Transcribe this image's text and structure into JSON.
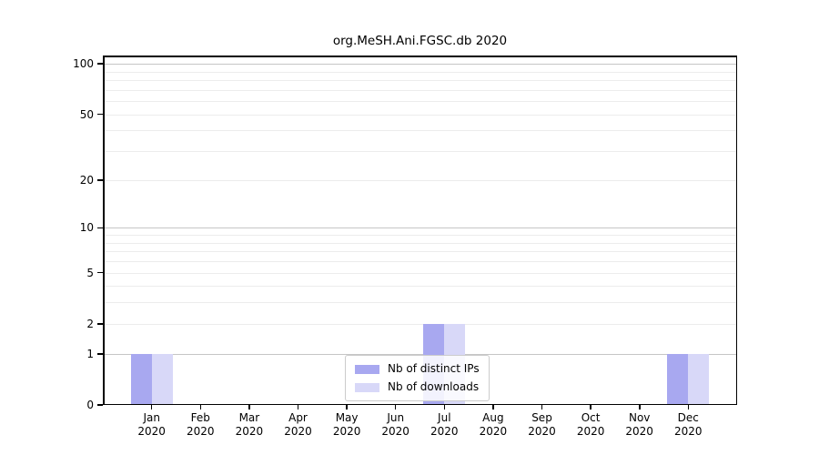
{
  "figure_title": "org.MeSH.Ani.FGSC.db 2020",
  "chart_data": {
    "type": "bar",
    "title": "org.MeSH.Ani.FGSC.db 2020",
    "categories": [
      "Jan 2020",
      "Feb 2020",
      "Mar 2020",
      "Apr 2020",
      "May 2020",
      "Jun 2020",
      "Jul 2020",
      "Aug 2020",
      "Sep 2020",
      "Oct 2020",
      "Nov 2020",
      "Dec 2020"
    ],
    "months": [
      "Jan",
      "Feb",
      "Mar",
      "Apr",
      "May",
      "Jun",
      "Jul",
      "Aug",
      "Sep",
      "Oct",
      "Nov",
      "Dec"
    ],
    "year": "2020",
    "series": [
      {
        "name": "Nb of distinct IPs",
        "color": "#a8a8f0",
        "values": [
          1,
          0,
          0,
          0,
          0,
          0,
          2,
          0,
          0,
          0,
          0,
          1
        ]
      },
      {
        "name": "Nb of downloads",
        "color": "#d8d8f8",
        "values": [
          1,
          0,
          0,
          0,
          0,
          0,
          2,
          0,
          0,
          0,
          0,
          1
        ]
      }
    ],
    "xlabel": "",
    "ylabel": "",
    "y_axis": {
      "scale": "log10(1+x)",
      "ticks": [
        0,
        1,
        2,
        5,
        10,
        20,
        50,
        100
      ],
      "major_gridlines": [
        1,
        10,
        100
      ],
      "minor_gridlines": [
        2,
        3,
        4,
        5,
        6,
        7,
        8,
        9,
        20,
        30,
        40,
        50,
        60,
        70,
        80,
        90
      ],
      "range": [
        0,
        112
      ]
    },
    "grid": true,
    "legend": {
      "position": "lower center inside plot",
      "entries": [
        "Nb of distinct IPs",
        "Nb of downloads"
      ]
    },
    "colors": {
      "bar_distinct_ips": "#a8a8f0",
      "bar_downloads": "#d8d8f8",
      "major_gridline": "#c6c6c6",
      "minor_gridline": "#ececec",
      "axis": "#000000",
      "background": "#ffffff",
      "legend_border": "#cccccc"
    }
  }
}
